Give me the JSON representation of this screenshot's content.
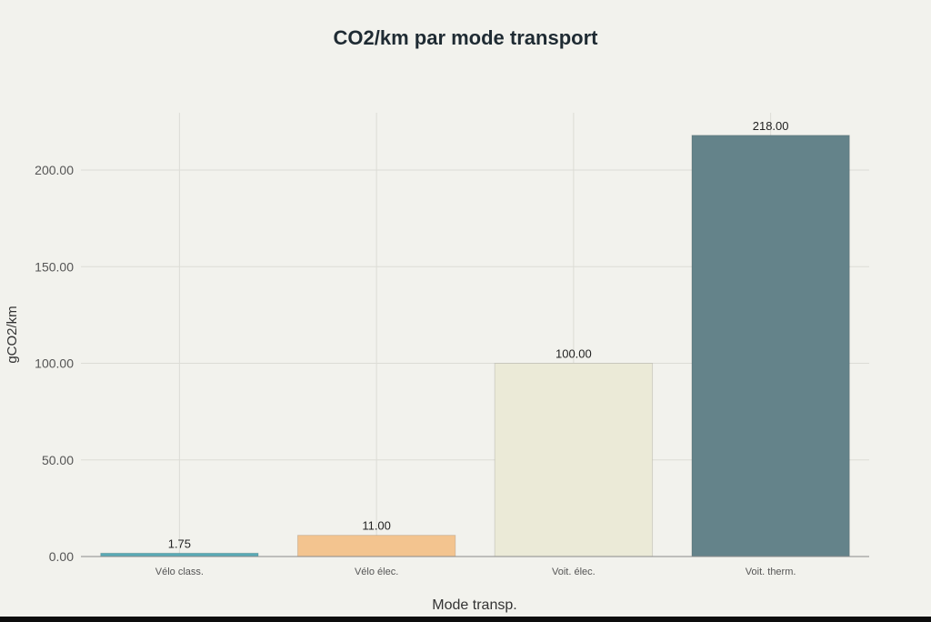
{
  "chart_data": {
    "type": "bar",
    "title": "CO2/km par mode transport",
    "xlabel": "Mode transp.",
    "ylabel": "gCO2/km",
    "categories": [
      "Vélo class.",
      "Vélo élec.",
      "Voit. élec.",
      "Voit. therm."
    ],
    "values": [
      1.75,
      11.0,
      100.0,
      218.0
    ],
    "data_labels": [
      "1.75",
      "11.00",
      "100.00",
      "218.00"
    ],
    "colors": [
      "#5aaab6",
      "#f3c48f",
      "#ebead7",
      "#64838a"
    ],
    "ylim": [
      0,
      230
    ],
    "yticks": [
      0,
      50,
      100,
      150,
      200
    ],
    "ytick_labels": [
      "0.00",
      "50.00",
      "100.00",
      "150.00",
      "200.00"
    ],
    "grid": true,
    "legend": "none"
  }
}
